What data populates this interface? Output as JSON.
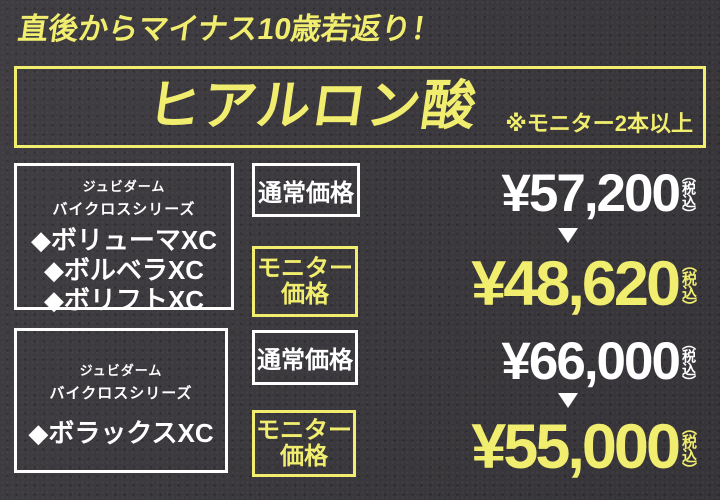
{
  "colors": {
    "background": "#39373b",
    "accent_yellow": "#f1ed6e",
    "text_white": "#ffffff"
  },
  "header": {
    "tagline": "直後からマイナス10歳若返り！",
    "title": "ヒアルロン酸",
    "monitor_note": "※モニター2本以上"
  },
  "products": [
    {
      "brand": "ジュビダーム",
      "series": "バイクロスシリーズ",
      "items": [
        "◆ボリューマXC",
        "◆ボルベラXC",
        "◆ボリフトXC"
      ]
    },
    {
      "brand": "ジュビダーム",
      "series": "バイクロスシリーズ",
      "items": [
        "◆ボラックスXC"
      ]
    }
  ],
  "pricing": [
    {
      "normal_label": "通常価格",
      "normal_price": "¥57,200",
      "normal_tax": "（税込）",
      "monitor_label_line1": "モニター",
      "monitor_label_line2": "価格",
      "monitor_price": "¥48,620",
      "monitor_tax": "（税込）"
    },
    {
      "normal_label": "通常価格",
      "normal_price": "¥66,000",
      "normal_tax": "（税込）",
      "monitor_label_line1": "モニター",
      "monitor_label_line2": "価格",
      "monitor_price": "¥55,000",
      "monitor_tax": "（税込）"
    }
  ]
}
